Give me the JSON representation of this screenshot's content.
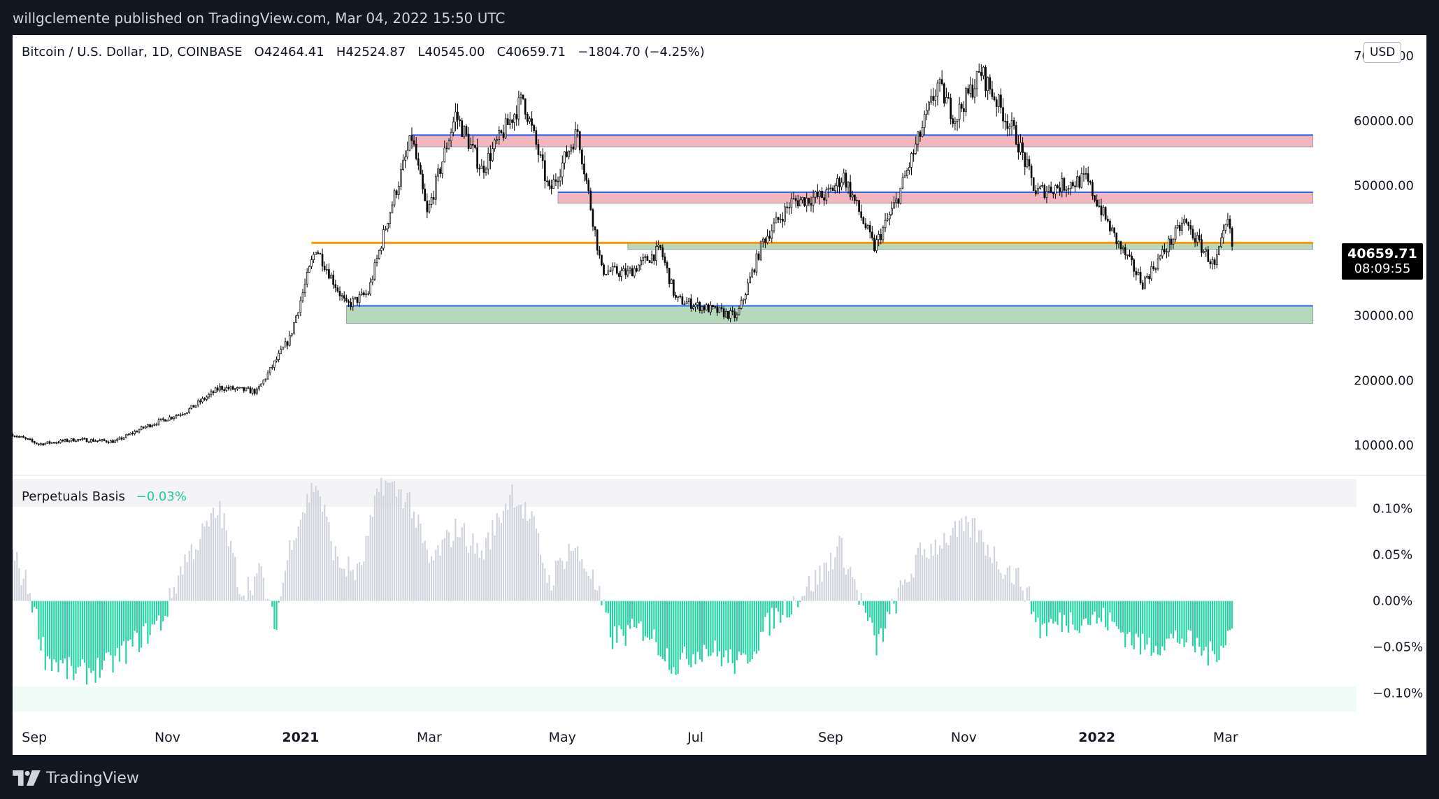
{
  "header": {
    "published": "willgclemente published on TradingView.com, Mar 04, 2022 15:50 UTC"
  },
  "footer": {
    "brand": "TradingView",
    "logo_icon": "tradingview-logo-icon"
  },
  "legend": {
    "symbol": "Bitcoin / U.S. Dollar, 1D, COINBASE",
    "open": "O42464.41",
    "high": "H42524.87",
    "low": "L40545.00",
    "close": "C40659.71",
    "change": "−1804.70 (−4.25%)"
  },
  "currency_button": "USD",
  "last_price": {
    "value": "40659.71",
    "countdown": "08:09:55"
  },
  "indicator": {
    "name": "Perpetuals Basis",
    "value": "−0.03%"
  },
  "colors": {
    "up_candle": "#ffffff",
    "down_candle": "#000000",
    "wick": "#000000",
    "resistance_zone": "#f4b6bd",
    "support_zone": "#b6d9bb",
    "zone_line": "#2962ff",
    "key_level": "#ff9800",
    "basis_positive": "#d1d4dc",
    "basis_negative": "#22d3a3"
  },
  "chart_data": [
    {
      "type": "candlestick",
      "title": "Bitcoin / U.S. Dollar, 1D, COINBASE",
      "x_range": [
        "2020-08-22",
        "2022-04-30"
      ],
      "ylim": [
        7000,
        70000
      ],
      "y_ticks": [
        10000,
        20000,
        30000,
        40000,
        50000,
        60000,
        70000
      ],
      "y_tick_labels": [
        "10000.00",
        "20000.00",
        "30000.00",
        "40000.00",
        "50000.00",
        "60000.00",
        "70000.00"
      ],
      "x_ticks": [
        {
          "date": "2020-09-01",
          "label": "Sep",
          "bold": false
        },
        {
          "date": "2020-11-01",
          "label": "Nov",
          "bold": false
        },
        {
          "date": "2021-01-01",
          "label": "2021",
          "bold": true
        },
        {
          "date": "2021-03-01",
          "label": "Mar",
          "bold": false
        },
        {
          "date": "2021-05-01",
          "label": "May",
          "bold": false
        },
        {
          "date": "2021-07-01",
          "label": "Jul",
          "bold": false
        },
        {
          "date": "2021-09-01",
          "label": "Sep",
          "bold": false
        },
        {
          "date": "2021-11-01",
          "label": "Nov",
          "bold": false
        },
        {
          "date": "2022-01-01",
          "label": "2022",
          "bold": true
        },
        {
          "date": "2022-03-01",
          "label": "Mar",
          "bold": false
        }
      ],
      "last_close": 40659.71,
      "close_path": [
        [
          "2020-08-22",
          11700
        ],
        [
          "2020-09-03",
          10200
        ],
        [
          "2020-09-20",
          10900
        ],
        [
          "2020-10-08",
          10600
        ],
        [
          "2020-10-22",
          12900
        ],
        [
          "2020-11-10",
          15300
        ],
        [
          "2020-11-25",
          18900
        ],
        [
          "2020-12-12",
          18300
        ],
        [
          "2020-12-27",
          26500
        ],
        [
          "2021-01-08",
          40500
        ],
        [
          "2021-01-22",
          31500
        ],
        [
          "2021-02-01",
          33500
        ],
        [
          "2021-02-10",
          45000
        ],
        [
          "2021-02-21",
          57500
        ],
        [
          "2021-02-28",
          45500
        ],
        [
          "2021-03-13",
          61000
        ],
        [
          "2021-03-25",
          52500
        ],
        [
          "2021-04-13",
          63500
        ],
        [
          "2021-04-25",
          49000
        ],
        [
          "2021-05-08",
          58500
        ],
        [
          "2021-05-19",
          37000
        ],
        [
          "2021-05-31",
          36500
        ],
        [
          "2021-06-15",
          40200
        ],
        [
          "2021-06-22",
          32500
        ],
        [
          "2021-07-20",
          29800
        ],
        [
          "2021-08-01",
          41500
        ],
        [
          "2021-08-14",
          47500
        ],
        [
          "2021-08-30",
          48500
        ],
        [
          "2021-09-07",
          51500
        ],
        [
          "2021-09-21",
          40500
        ],
        [
          "2021-10-01",
          47500
        ],
        [
          "2021-10-20",
          65500
        ],
        [
          "2021-10-28",
          60500
        ],
        [
          "2021-11-09",
          67500
        ],
        [
          "2021-11-25",
          57500
        ],
        [
          "2021-12-04",
          49000
        ],
        [
          "2021-12-27",
          51000
        ],
        [
          "2022-01-10",
          41500
        ],
        [
          "2022-01-22",
          35000
        ],
        [
          "2022-02-10",
          44500
        ],
        [
          "2022-02-24",
          37500
        ],
        [
          "2022-03-02",
          44500
        ],
        [
          "2022-03-04",
          40659.71
        ]
      ],
      "annotations": {
        "resistance_zones": [
          {
            "from": "2021-02-21",
            "to": "2022-04-10",
            "low": 56000,
            "high": 57800
          },
          {
            "from": "2021-04-29",
            "to": "2022-04-10",
            "low": 47300,
            "high": 49000
          }
        ],
        "support_zones": [
          {
            "from": "2021-05-31",
            "to": "2022-04-10",
            "low": 40200,
            "high": 41200
          },
          {
            "from": "2021-01-22",
            "to": "2022-04-10",
            "low": 28800,
            "high": 31500
          }
        ],
        "key_level": {
          "from": "2021-01-06",
          "to": "2022-04-10",
          "value": 41200
        }
      }
    },
    {
      "type": "bar",
      "title": "Perpetuals Basis",
      "ylim": [
        -0.12,
        0.13
      ],
      "y_ticks": [
        -0.1,
        -0.05,
        0.0,
        0.05,
        0.1
      ],
      "y_tick_labels": [
        "−0.10%",
        "−0.05%",
        "0.00%",
        "0.05%",
        "0.10%"
      ],
      "last_value": -0.03,
      "path": [
        [
          "2020-08-22",
          0.05
        ],
        [
          "2020-08-30",
          0.01
        ],
        [
          "2020-09-06",
          -0.06
        ],
        [
          "2020-09-20",
          -0.08
        ],
        [
          "2020-10-05",
          -0.07
        ],
        [
          "2020-10-20",
          -0.04
        ],
        [
          "2020-10-30",
          -0.02
        ],
        [
          "2020-11-08",
          0.04
        ],
        [
          "2020-11-25",
          0.1
        ],
        [
          "2020-12-05",
          0.01
        ],
        [
          "2020-12-14",
          0.03
        ],
        [
          "2020-12-20",
          -0.03
        ],
        [
          "2020-12-28",
          0.07
        ],
        [
          "2021-01-08",
          0.13
        ],
        [
          "2021-01-18",
          0.04
        ],
        [
          "2021-01-28",
          0.03
        ],
        [
          "2021-02-07",
          0.13
        ],
        [
          "2021-02-20",
          0.11
        ],
        [
          "2021-03-01",
          0.04
        ],
        [
          "2021-03-14",
          0.08
        ],
        [
          "2021-03-25",
          0.05
        ],
        [
          "2021-04-08",
          0.12
        ],
        [
          "2021-04-18",
          0.08
        ],
        [
          "2021-04-25",
          0.02
        ],
        [
          "2021-05-05",
          0.06
        ],
        [
          "2021-05-14",
          0.03
        ],
        [
          "2021-05-24",
          -0.04
        ],
        [
          "2021-06-08",
          -0.03
        ],
        [
          "2021-06-22",
          -0.07
        ],
        [
          "2021-07-05",
          -0.05
        ],
        [
          "2021-07-22",
          -0.07
        ],
        [
          "2021-08-05",
          -0.02
        ],
        [
          "2021-08-15",
          0.0
        ],
        [
          "2021-08-28",
          0.03
        ],
        [
          "2021-09-05",
          0.06
        ],
        [
          "2021-09-12",
          0.02
        ],
        [
          "2021-09-22",
          -0.05
        ],
        [
          "2021-10-01",
          0.0
        ],
        [
          "2021-10-12",
          0.05
        ],
        [
          "2021-10-25",
          0.07
        ],
        [
          "2021-11-05",
          0.08
        ],
        [
          "2021-11-18",
          0.04
        ],
        [
          "2021-11-28",
          0.02
        ],
        [
          "2021-12-06",
          -0.03
        ],
        [
          "2021-12-20",
          -0.02
        ],
        [
          "2022-01-05",
          -0.02
        ],
        [
          "2022-01-22",
          -0.05
        ],
        [
          "2022-02-08",
          -0.04
        ],
        [
          "2022-02-23",
          -0.06
        ],
        [
          "2022-03-04",
          -0.03
        ]
      ]
    }
  ]
}
